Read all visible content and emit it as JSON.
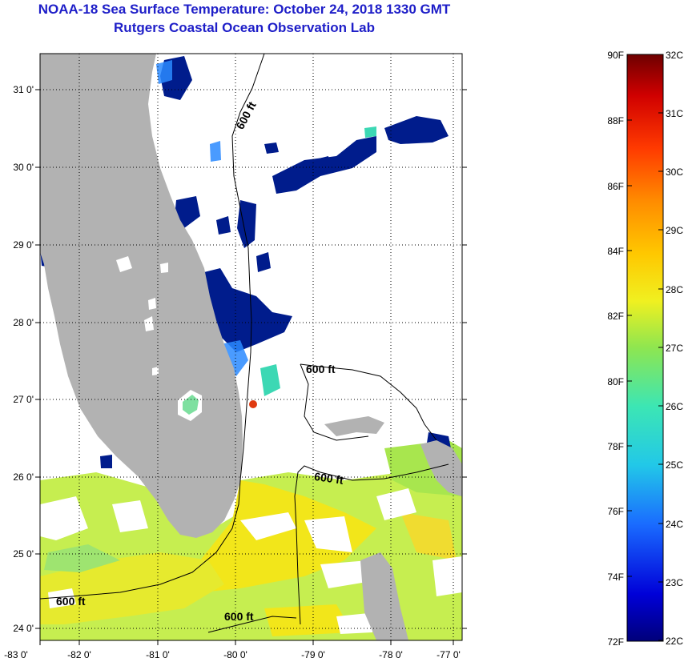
{
  "title": {
    "line1": "NOAA-18 Sea Surface Temperature:  October 24, 2018 1330 GMT",
    "line2": "Rutgers Coastal Ocean Observation Lab"
  },
  "map": {
    "lat_labels": [
      "31 0'",
      "30 0'",
      "29 0'",
      "28 0'",
      "27 0'",
      "26 0'",
      "25 0'",
      "24 0'"
    ],
    "lon_labels": [
      "-83 0'",
      "-82 0'",
      "-81 0'",
      "-80 0'",
      "-79 0'",
      "-78 0'",
      "-77 0'"
    ],
    "isobath_labels": [
      "600 ft",
      "600 ft",
      "600 ft",
      "600 ft",
      "600 ft"
    ],
    "colors": {
      "land": "#b2b2b2",
      "cloud": "#ffffff",
      "cold": "#001c8c",
      "warm": "#f2e61a"
    }
  },
  "colorbar": {
    "fahrenheit": [
      "90F",
      "88F",
      "86F",
      "84F",
      "82F",
      "80F",
      "78F",
      "76F",
      "74F",
      "72F"
    ],
    "celsius": [
      "32C",
      "31C",
      "30C",
      "29C",
      "28C",
      "27C",
      "26C",
      "25C",
      "24C",
      "23C",
      "22C"
    ]
  }
}
